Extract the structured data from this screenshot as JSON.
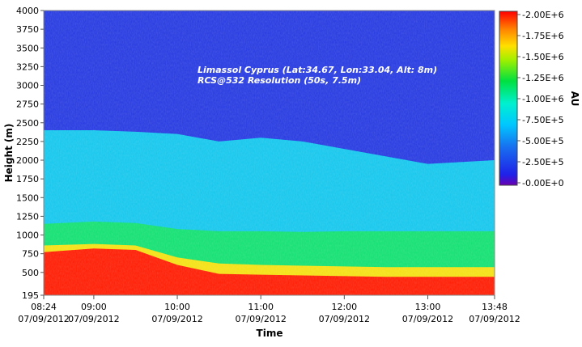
{
  "chart_data": {
    "type": "heatmap",
    "title": "",
    "annotations": [
      "Limassol Cyprus (Lat:34.67, Lon:33.04, Alt: 8m)",
      "RCS@532 Resolution (50s, 7.5m)"
    ],
    "xlabel": "Time",
    "ylabel": "Height (m)",
    "x_range": [
      "08:24",
      "13:48"
    ],
    "x_date": "07/09/2012",
    "x_ticks": [
      {
        "time": "08:24",
        "date": "07/09/2012"
      },
      {
        "time": "09:00",
        "date": "07/09/2012"
      },
      {
        "time": "10:00",
        "date": "07/09/2012"
      },
      {
        "time": "11:00",
        "date": "07/09/2012"
      },
      {
        "time": "12:00",
        "date": "07/09/2012"
      },
      {
        "time": "13:00",
        "date": "07/09/2012"
      },
      {
        "time": "13:48",
        "date": "07/09/2012"
      }
    ],
    "ylim": [
      195,
      4000
    ],
    "y_ticks": [
      195,
      500,
      750,
      1000,
      1250,
      1500,
      1750,
      2000,
      2250,
      2500,
      2750,
      3000,
      3250,
      3500,
      3750,
      4000
    ],
    "colorbar": {
      "label": "AU",
      "range": [
        0,
        2000000
      ],
      "ticks": [
        "2.00E+6",
        "1.75E+6",
        "1.50E+6",
        "1.25E+6",
        "1.00E+6",
        "7.50E+5",
        "5.00E+5",
        "2.50E+5",
        "0.00E+0"
      ],
      "colors": [
        "#7a00c8",
        "#1b3cf0",
        "#00aaff",
        "#00f0e0",
        "#00e040",
        "#c8f000",
        "#ffd000",
        "#ff7a00",
        "#ff0000"
      ]
    },
    "profile_times": [
      "08:24",
      "09:00",
      "09:30",
      "10:00",
      "10:30",
      "11:00",
      "11:30",
      "12:00",
      "12:30",
      "13:00",
      "13:48"
    ],
    "layers": {
      "red_top_m": [
        770,
        820,
        800,
        600,
        480,
        470,
        460,
        450,
        440,
        440,
        440
      ],
      "yellow_top_m": [
        860,
        880,
        860,
        700,
        620,
        600,
        590,
        580,
        570,
        570,
        570
      ],
      "green_top_m": [
        1150,
        1180,
        1160,
        1080,
        1050,
        1050,
        1040,
        1050,
        1050,
        1050,
        1050
      ],
      "cyan_top_m": [
        2400,
        2400,
        2380,
        2350,
        2250,
        2300,
        2250,
        2150,
        2050,
        1950,
        2000
      ],
      "background_value_AU": 350000
    }
  }
}
